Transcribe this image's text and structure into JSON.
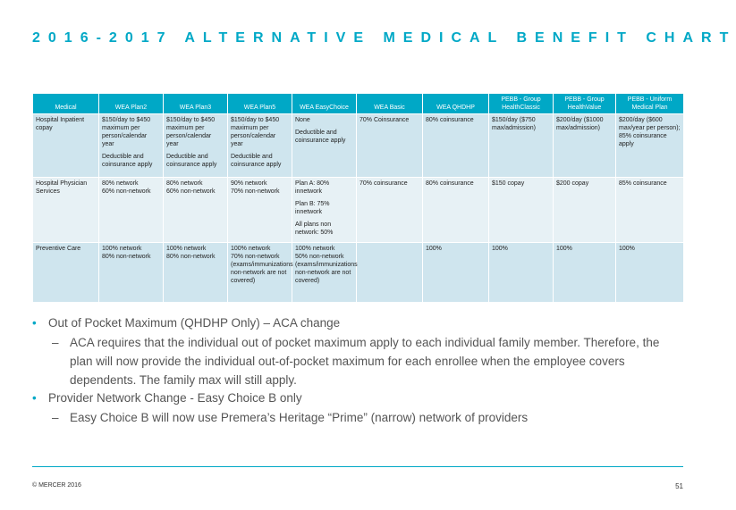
{
  "title": "2016-2017 ALTERNATIVE MEDICAL BENEFIT CHART",
  "table": {
    "headers": [
      "Medical",
      "WEA Plan2",
      "WEA Plan3",
      "WEA Plan5",
      "WEA EasyChoice",
      "WEA Basic",
      "WEA QHDHP",
      "PEBB - Group HealthClassic",
      "PEBB - Group HealthValue",
      "PEBB - Uniform Medical Plan"
    ],
    "rows": [
      {
        "label": "Hospital Inpatient copay",
        "cells": [
          [
            "$150/day to $450 maximum per person/calendar year",
            "",
            "Deductible and coinsurance apply"
          ],
          [
            "$150/day to $450 maximum per person/calendar year",
            "",
            "Deductible and coinsurance apply"
          ],
          [
            "$150/day to $450 maximum per person/calendar year",
            "",
            "Deductible and coinsurance apply"
          ],
          [
            "None",
            "",
            "Deductible and coinsurance apply"
          ],
          [
            "70% Coinsurance"
          ],
          [
            "80% coinsurance"
          ],
          [
            "$150/day ($750 max/admission)"
          ],
          [
            "$200/day ($1000 max/admission)"
          ],
          [
            "$200/day ($600 max/year per person); 85% coinsurance apply"
          ]
        ]
      },
      {
        "label": "Hospital Physician Services",
        "cells": [
          [
            "80% network",
            "60% non-network"
          ],
          [
            "80% network",
            "60% non-network"
          ],
          [
            "90% network",
            "70% non-network"
          ],
          [
            "Plan A: 80% innetwork",
            "",
            "Plan B: 75% innetwork",
            "",
            "All plans non network: 50%"
          ],
          [
            "70% coinsurance"
          ],
          [
            "80% coinsurance"
          ],
          [
            "$150 copay"
          ],
          [
            "$200 copay"
          ],
          [
            "85% coinsurance"
          ]
        ]
      },
      {
        "label": "Preventive Care",
        "cells": [
          [
            "100% network",
            "80% non-network"
          ],
          [
            "100% network",
            "80% non-network"
          ],
          [
            "100% network",
            "70% non-network (exams/immunizations non-network are not covered)"
          ],
          [
            "100% network",
            "50% non-network (exams/immunizations non-network are not covered)"
          ],
          [],
          [
            "100%"
          ],
          [
            "100%"
          ],
          [
            "100%"
          ],
          [
            "100%"
          ]
        ]
      }
    ]
  },
  "bullets": [
    {
      "level": 1,
      "text": "Out of Pocket Maximum (QHDHP Only) – ACA change"
    },
    {
      "level": 2,
      "text": "ACA requires that the individual out of pocket maximum apply to each individual family member. Therefore, the plan will now provide the individual out-of-pocket maximum for each enrollee when the employee covers dependents. The family max will still apply."
    },
    {
      "level": 1,
      "text": "Provider Network Change - Easy Choice B only"
    },
    {
      "level": 2,
      "text": "Easy Choice B will now use Premera’s Heritage “Prime” (narrow) network of providers"
    }
  ],
  "footer": {
    "copyright": "© MERCER 2016",
    "page_number": "51"
  },
  "colors": {
    "accent": "#00a8c6",
    "row_dark": "#cfe5ee",
    "row_light": "#e7f1f5"
  }
}
